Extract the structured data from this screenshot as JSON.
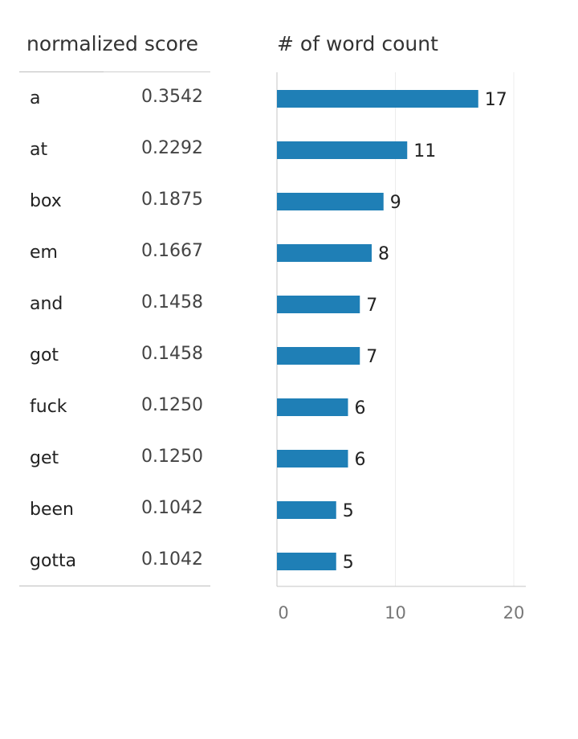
{
  "table": {
    "header": "normalized score",
    "rows": [
      {
        "word": "a",
        "score": "0.3542"
      },
      {
        "word": "at",
        "score": "0.2292"
      },
      {
        "word": "box",
        "score": "0.1875"
      },
      {
        "word": "em",
        "score": "0.1667"
      },
      {
        "word": "and",
        "score": "0.1458"
      },
      {
        "word": "got",
        "score": "0.1458"
      },
      {
        "word": "fuck",
        "score": "0.1250"
      },
      {
        "word": "get",
        "score": "0.1250"
      },
      {
        "word": "been",
        "score": "0.1042"
      },
      {
        "word": "gotta",
        "score": "0.1042"
      }
    ]
  },
  "chart_data": {
    "type": "bar",
    "orientation": "horizontal",
    "title": "# of word count",
    "categories": [
      "a",
      "at",
      "box",
      "em",
      "and",
      "got",
      "fuck",
      "get",
      "been",
      "gotta"
    ],
    "values": [
      17,
      11,
      9,
      8,
      7,
      7,
      6,
      6,
      5,
      5
    ],
    "xlim": [
      0,
      21
    ],
    "xticks": [
      0,
      10,
      20
    ],
    "grid": true,
    "data_labels": true,
    "bar_color": "#1f7fb6"
  }
}
